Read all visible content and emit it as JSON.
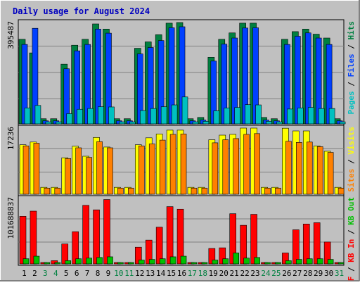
{
  "title": "Daily usage for August 2024",
  "colors": {
    "page_bg": "#c0c0c0",
    "title": "#0000c0",
    "pages": "#00c0c0",
    "files": "#0040ff",
    "hits": "#008040",
    "visits": "#ffff00",
    "sites": "#ff8000",
    "kb_in": "#ff0000",
    "kb_out": "#00c000",
    "weekend_day": "#008040",
    "weekday": "#000000"
  },
  "chart_data": [
    {
      "type": "bar",
      "panel": "hits-files-pages",
      "ymax_label": "395487",
      "ylim": [
        0,
        395487
      ],
      "legend": [
        {
          "text": "Pages",
          "color": "#00c0c0"
        },
        {
          "text": "Files",
          "color": "#0040ff"
        },
        {
          "text": "Hits",
          "color": "#008040"
        }
      ],
      "categories": [
        "1",
        "2",
        "3",
        "4",
        "5",
        "6",
        "7",
        "8",
        "9",
        "10",
        "11",
        "12",
        "13",
        "14",
        "15",
        "16",
        "17",
        "18",
        "19",
        "20",
        "21",
        "22",
        "23",
        "24",
        "25",
        "26",
        "27",
        "28",
        "29",
        "30",
        "31"
      ],
      "series": [
        {
          "name": "Hits",
          "values": [
            330000,
            277000,
            20000,
            20000,
            233000,
            307000,
            330000,
            390000,
            370000,
            20000,
            20000,
            295000,
            320000,
            348000,
            393000,
            395487,
            20000,
            25000,
            260000,
            330000,
            355000,
            393000,
            393000,
            25000,
            20000,
            330000,
            360000,
            370000,
            350000,
            335000,
            20000
          ]
        },
        {
          "name": "Files",
          "values": [
            310000,
            373000,
            12000,
            12000,
            215000,
            285000,
            310000,
            370000,
            354000,
            12000,
            12000,
            273000,
            298000,
            325000,
            375000,
            379000,
            12000,
            15000,
            245000,
            311000,
            335000,
            374000,
            375000,
            15000,
            12000,
            310000,
            342000,
            355000,
            335000,
            310000,
            12000
          ]
        },
        {
          "name": "Pages",
          "values": [
            62000,
            72000,
            8000,
            8000,
            40000,
            57000,
            60000,
            67000,
            66000,
            8000,
            8000,
            52000,
            60000,
            67000,
            74000,
            105000,
            8000,
            10000,
            51000,
            62000,
            64000,
            75000,
            74000,
            10000,
            8000,
            58000,
            62000,
            64000,
            60000,
            60000,
            8000
          ]
        }
      ]
    },
    {
      "type": "bar",
      "panel": "visits-sites",
      "ymax_label": "17236",
      "ylim": [
        0,
        17236
      ],
      "legend": [
        {
          "text": "Sites",
          "color": "#ff8000"
        },
        {
          "text": "Visits",
          "color": "#ffff00"
        }
      ],
      "categories": [
        "1",
        "2",
        "3",
        "4",
        "5",
        "6",
        "7",
        "8",
        "9",
        "10",
        "11",
        "12",
        "13",
        "14",
        "15",
        "16",
        "17",
        "18",
        "19",
        "20",
        "21",
        "22",
        "23",
        "24",
        "25",
        "26",
        "27",
        "28",
        "29",
        "30",
        "31"
      ],
      "series": [
        {
          "name": "Visits",
          "values": [
            12900,
            13600,
            1800,
            1800,
            9500,
            12500,
            9900,
            14800,
            12300,
            1800,
            1800,
            12900,
            14700,
            15700,
            16700,
            16700,
            1800,
            1800,
            14200,
            15400,
            15600,
            17236,
            17236,
            1800,
            1800,
            17200,
            16500,
            16500,
            12600,
            11200,
            1800
          ]
        },
        {
          "name": "Sites",
          "values": [
            12600,
            13300,
            1600,
            1600,
            9300,
            12100,
            9600,
            13700,
            12100,
            1600,
            1600,
            12600,
            13100,
            14100,
            15600,
            15700,
            1600,
            1600,
            13400,
            14200,
            14500,
            15600,
            15800,
            1600,
            1600,
            13800,
            13500,
            13600,
            12400,
            10900,
            1600
          ]
        }
      ]
    },
    {
      "type": "bar",
      "panel": "kbytes",
      "ymax_label": "101688837",
      "ylim": [
        0,
        101688837
      ],
      "legend": [
        {
          "text": "KB F",
          "color": "#ff0000"
        },
        {
          "text": "KB In",
          "color": "#ff0000"
        },
        {
          "text": "KB Out",
          "color": "#00c000"
        }
      ],
      "categories": [
        "1",
        "2",
        "3",
        "4",
        "5",
        "6",
        "7",
        "8",
        "9",
        "10",
        "11",
        "12",
        "13",
        "14",
        "15",
        "16",
        "17",
        "18",
        "19",
        "20",
        "21",
        "22",
        "23",
        "24",
        "25",
        "26",
        "27",
        "28",
        "29",
        "30",
        "31"
      ],
      "series": [
        {
          "name": "KB F",
          "values": [
            74000000,
            82000000,
            2000000,
            5000000,
            31000000,
            50000000,
            91000000,
            84000000,
            100000000,
            1000000,
            1000000,
            26000000,
            37000000,
            57000000,
            89000000,
            85000000,
            1000000,
            1000000,
            24000000,
            25000000,
            78000000,
            60000000,
            77000000,
            1000000,
            1000000,
            17000000,
            53000000,
            62000000,
            64000000,
            34000000,
            1000000
          ]
        },
        {
          "name": "KB Out",
          "values": [
            8000000,
            12000000,
            1000000,
            1000000,
            5000000,
            8000000,
            9000000,
            10000000,
            11000000,
            500000,
            500000,
            6000000,
            7000000,
            8000000,
            11000000,
            12000000,
            500000,
            600000,
            6000000,
            8000000,
            17000000,
            9000000,
            10000000,
            600000,
            500000,
            5000000,
            7000000,
            8000000,
            8000000,
            7000000,
            500000
          ]
        }
      ]
    }
  ],
  "x_axis": {
    "labels": [
      "1",
      "2",
      "3",
      "4",
      "5",
      "6",
      "7",
      "8",
      "9",
      "10",
      "11",
      "12",
      "13",
      "14",
      "15",
      "16",
      "17",
      "18",
      "19",
      "20",
      "21",
      "22",
      "23",
      "24",
      "25",
      "26",
      "27",
      "28",
      "29",
      "30",
      "31"
    ],
    "weekend": [
      3,
      4,
      10,
      11,
      17,
      18,
      24,
      25,
      31
    ]
  }
}
